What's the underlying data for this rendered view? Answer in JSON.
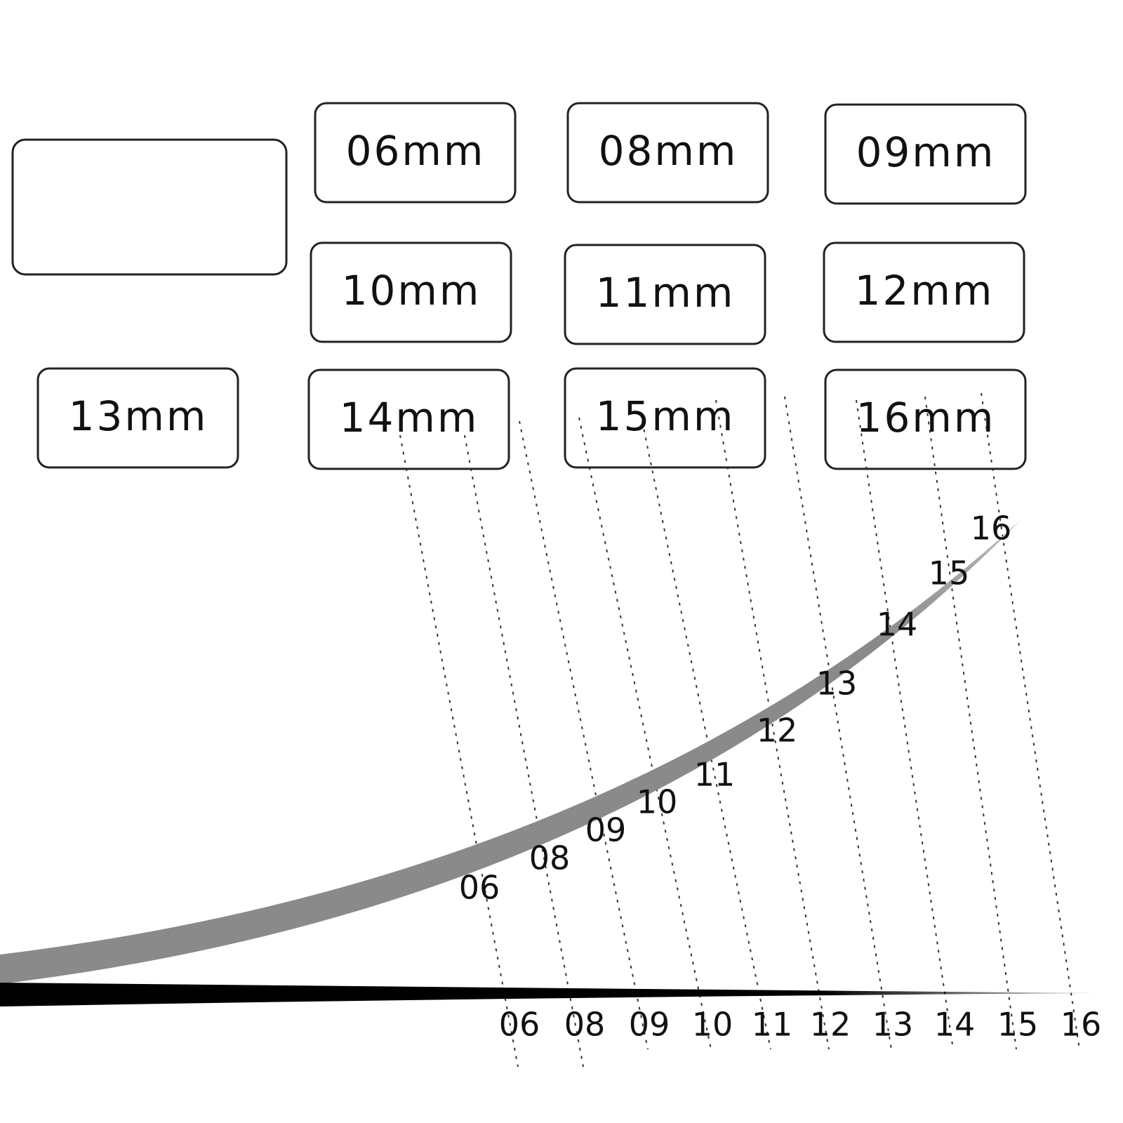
{
  "boxes": [
    "06mm",
    "08mm",
    "09mm",
    "10mm",
    "11mm",
    "12mm",
    "13mm",
    "14mm",
    "15mm",
    "16mm"
  ],
  "curve_labels": [
    "06",
    "08",
    "09",
    "10",
    "11",
    "12",
    "13",
    "14",
    "15",
    "16"
  ],
  "base_labels": [
    "06",
    "08",
    "09",
    "10",
    "11",
    "12",
    "13",
    "14",
    "15",
    "16"
  ]
}
